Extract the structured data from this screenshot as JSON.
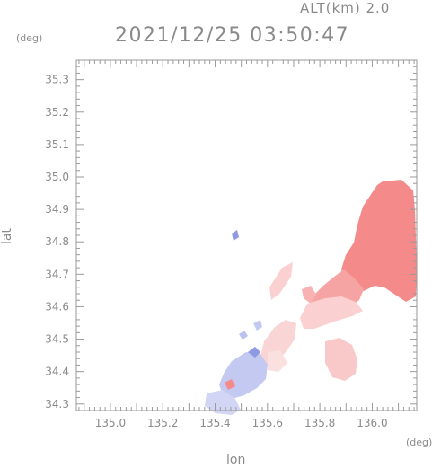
{
  "header": {
    "altitude_label": "ALT(km) 2.0",
    "timestamp": "2021/12/25 03:50:47"
  },
  "axes": {
    "x_label": "lon",
    "y_label": "lat",
    "x_units": "(deg)",
    "y_units": "(deg)",
    "x_range": [
      134.87,
      136.17
    ],
    "y_range": [
      34.28,
      35.36
    ],
    "x_ticks": [
      "135.0",
      "135.2",
      "135.4",
      "135.6",
      "135.8",
      "136.0"
    ],
    "y_ticks": [
      "34.3",
      "34.4",
      "34.5",
      "34.6",
      "34.7",
      "34.8",
      "34.9",
      "35.0",
      "35.1",
      "35.2",
      "35.3"
    ]
  },
  "colors": {
    "axis": "#9a9a9a",
    "strong_red": "#f58a8a",
    "light_red": "#f9c1c1",
    "blue": "#b9c2ef",
    "dark_blue": "#8f99e3",
    "text": "#8a8a8a"
  }
}
